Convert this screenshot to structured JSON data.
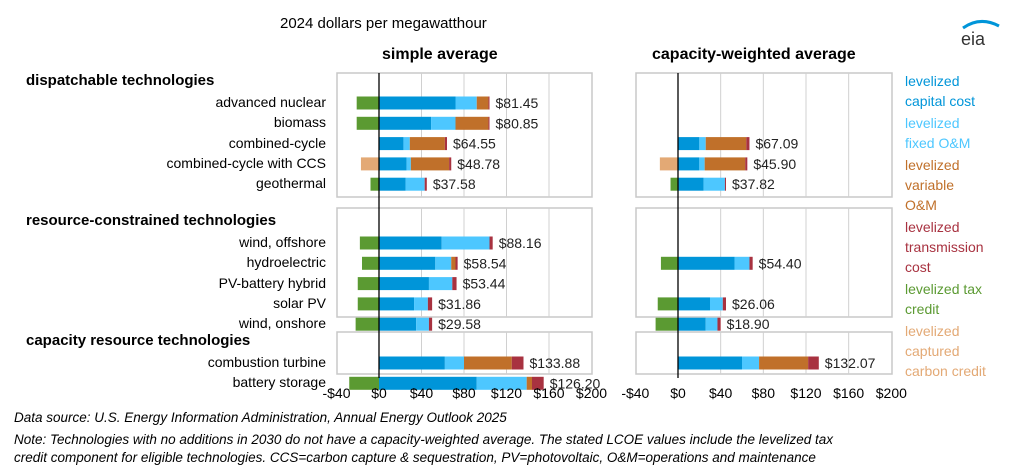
{
  "units_label": "2024 dollars per megawatthour",
  "logo_text": "eia",
  "chart_data": {
    "type": "bar",
    "subtype": "stacked-horizontal",
    "title": "2024 dollars per megawatthour",
    "panels": [
      "simple average",
      "capacity-weighted average"
    ],
    "xlim": [
      -40,
      200
    ],
    "xticks": [
      -40,
      0,
      40,
      80,
      120,
      160,
      200
    ],
    "xtick_labels": [
      "-$40",
      "$0",
      "$40",
      "$80",
      "$120",
      "$160",
      "$200"
    ],
    "grid": true,
    "legend_position": "right",
    "components": [
      {
        "key": "capital",
        "name": "levelized capital cost",
        "color": "#0095d9"
      },
      {
        "key": "fixed",
        "name": "levelized fixed O&M",
        "color": "#4dc7ff"
      },
      {
        "key": "variable",
        "name": "levelized variable O&M",
        "color": "#c0702a"
      },
      {
        "key": "transmission",
        "name": "levelized transmission cost",
        "color": "#a83240"
      },
      {
        "key": "tax_credit",
        "name": "levelized tax credit",
        "color": "#5b9a32"
      },
      {
        "key": "carbon_credit",
        "name": "levelized captured carbon credit",
        "color": "#e3a975"
      }
    ],
    "groups": [
      {
        "name": "dispatchable technologies",
        "technologies": [
          {
            "name": "advanced nuclear",
            "simple": {
              "total": "$81.45",
              "capital": 72,
              "fixed": 20,
              "variable": 11,
              "transmission": 1,
              "tax_credit": -21,
              "carbon_credit": 0
            },
            "weighted": null
          },
          {
            "name": "biomass",
            "simple": {
              "total": "$80.85",
              "capital": 49,
              "fixed": 23,
              "variable": 31,
              "transmission": 1,
              "tax_credit": -21,
              "carbon_credit": 0
            },
            "weighted": null
          },
          {
            "name": "combined-cycle",
            "simple": {
              "total": "$64.55",
              "capital": 23,
              "fixed": 6,
              "variable": 33,
              "transmission": 2,
              "tax_credit": 0,
              "carbon_credit": 0
            },
            "weighted": {
              "total": "$67.09",
              "capital": 20,
              "fixed": 6,
              "variable": 38,
              "transmission": 3,
              "tax_credit": 0,
              "carbon_credit": 0
            }
          },
          {
            "name": "combined-cycle with CCS",
            "simple": {
              "total": "$48.78",
              "capital": 26,
              "fixed": 4,
              "variable": 36,
              "transmission": 2,
              "tax_credit": 0,
              "carbon_credit": -17
            },
            "weighted": {
              "total": "$45.90",
              "capital": 20,
              "fixed": 5,
              "variable": 38,
              "transmission": 2,
              "tax_credit": 0,
              "carbon_credit": -17
            }
          },
          {
            "name": "geothermal",
            "simple": {
              "total": "$37.58",
              "capital": 25,
              "fixed": 18,
              "variable": 0,
              "transmission": 2,
              "tax_credit": -8,
              "carbon_credit": 0
            },
            "weighted": {
              "total": "$37.82",
              "capital": 24,
              "fixed": 20,
              "variable": 0,
              "transmission": 1,
              "tax_credit": -7,
              "carbon_credit": 0
            }
          }
        ]
      },
      {
        "name": "resource-constrained technologies",
        "technologies": [
          {
            "name": "wind, offshore",
            "simple": {
              "total": "$88.16",
              "capital": 59,
              "fixed": 45,
              "variable": 0,
              "transmission": 3,
              "tax_credit": -18,
              "carbon_credit": 0
            },
            "weighted": null
          },
          {
            "name": "hydroelectric",
            "simple": {
              "total": "$58.54",
              "capital": 53,
              "fixed": 15,
              "variable": 4,
              "transmission": 2,
              "tax_credit": -16,
              "carbon_credit": 0
            },
            "weighted": {
              "total": "$54.40",
              "capital": 53,
              "fixed": 14,
              "variable": 0,
              "transmission": 3,
              "tax_credit": -16,
              "carbon_credit": 0
            }
          },
          {
            "name": "PV-battery hybrid",
            "simple": {
              "total": "$53.44",
              "capital": 47,
              "fixed": 22,
              "variable": 0,
              "transmission": 4,
              "tax_credit": -20,
              "carbon_credit": 0
            },
            "weighted": null
          },
          {
            "name": "solar PV",
            "simple": {
              "total": "$31.86",
              "capital": 33,
              "fixed": 13,
              "variable": 0,
              "transmission": 4,
              "tax_credit": -20,
              "carbon_credit": 0
            },
            "weighted": {
              "total": "$26.06",
              "capital": 30,
              "fixed": 12,
              "variable": 0,
              "transmission": 3,
              "tax_credit": -19,
              "carbon_credit": 0
            }
          },
          {
            "name": "wind, onshore",
            "simple": {
              "total": "$29.58",
              "capital": 35,
              "fixed": 12,
              "variable": 0,
              "transmission": 3,
              "tax_credit": -22,
              "carbon_credit": 0
            },
            "weighted": {
              "total": "$18.90",
              "capital": 26,
              "fixed": 11,
              "variable": 0,
              "transmission": 3,
              "tax_credit": -21,
              "carbon_credit": 0
            }
          }
        ]
      },
      {
        "name": "capacity resource technologies",
        "technologies": [
          {
            "name": "combustion turbine",
            "simple": {
              "total": "$133.88",
              "capital": 62,
              "fixed": 18,
              "variable": 45,
              "transmission": 11,
              "tax_credit": 0,
              "carbon_credit": 0
            },
            "weighted": {
              "total": "$132.07",
              "capital": 60,
              "fixed": 16,
              "variable": 46,
              "transmission": 10,
              "tax_credit": 0,
              "carbon_credit": 0
            }
          },
          {
            "name": "battery storage",
            "simple": {
              "total": "$126.20",
              "capital": 92,
              "fixed": 47,
              "variable": 5,
              "transmission": 11,
              "tax_credit": -28,
              "carbon_credit": 0
            },
            "weighted": null
          }
        ]
      }
    ]
  },
  "legend": [
    {
      "lines": [
        "levelized",
        "capital cost"
      ],
      "color": "#0095d9"
    },
    {
      "lines": [
        "levelized",
        "fixed O&M"
      ],
      "color": "#4dc7ff"
    },
    {
      "lines": [
        "levelized",
        "variable",
        "O&M"
      ],
      "color": "#c0702a"
    },
    {
      "lines": [
        "levelized",
        "transmission",
        "cost"
      ],
      "color": "#a83240"
    },
    {
      "lines": [
        "levelized tax",
        "credit"
      ],
      "color": "#5b9a32"
    },
    {
      "lines": [
        "levelized",
        "captured",
        "carbon credit"
      ],
      "color": "#e3a975"
    }
  ],
  "source_note": "Data source:  U.S. Energy Information Administration, Annual Energy Outlook 2025",
  "note_line1": "Note: Technologies with no additions in 2030 do not have a capacity-weighted average. The stated LCOE values include the levelized tax",
  "note_line2": "credit component for eligible technologies. CCS=carbon capture & sequestration, PV=photovoltaic, O&M=operations and maintenance"
}
